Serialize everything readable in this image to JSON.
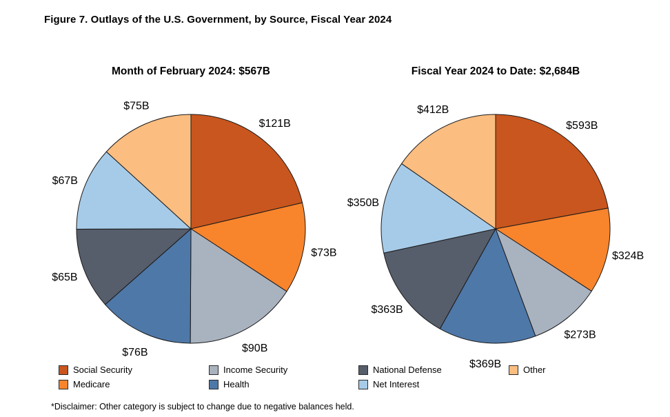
{
  "figure_title": "Figure 7. Outlays of the U.S. Government, by Source, Fiscal Year 2024",
  "disclaimer": "*Disclaimer: Other category is subject to change due to negative balances held.",
  "legend": {
    "items": [
      {
        "label": "Social Security",
        "color": "#C9561E"
      },
      {
        "label": "Medicare",
        "color": "#F8842C"
      },
      {
        "label": "Income Security",
        "color": "#A9B2BF"
      },
      {
        "label": "Health",
        "color": "#4E78A8"
      },
      {
        "label": "National Defense",
        "color": "#565D6B"
      },
      {
        "label": "Net Interest",
        "color": "#A6CBE8"
      },
      {
        "label": "Other",
        "color": "#FBBD80"
      }
    ]
  },
  "chart_data": [
    {
      "type": "pie",
      "title": "Month of February 2024: $567B",
      "total_label": "$567B",
      "categories": [
        "Social Security",
        "Medicare",
        "Income Security",
        "Health",
        "National Defense",
        "Net Interest",
        "Other"
      ],
      "values": [
        121,
        73,
        90,
        76,
        65,
        67,
        75
      ],
      "slice_labels": [
        "$121B",
        "$73B",
        "$90B",
        "$76B",
        "$65B",
        "$67B",
        "$75B"
      ],
      "colors": [
        "#C9561E",
        "#F8842C",
        "#A9B2BF",
        "#4E78A8",
        "#565D6B",
        "#A6CBE8",
        "#FBBD80"
      ],
      "start_angle_deg": 0,
      "direction": "clockwise",
      "label_distance": 1.18
    },
    {
      "type": "pie",
      "title": "Fiscal Year 2024 to Date: $2,684B",
      "total_label": "$2,684B",
      "categories": [
        "Social Security",
        "Medicare",
        "Income Security",
        "Health",
        "National Defense",
        "Net Interest",
        "Other"
      ],
      "values": [
        593,
        324,
        273,
        369,
        363,
        350,
        412
      ],
      "slice_labels": [
        "$593B",
        "$324B",
        "$273B",
        "$369B",
        "$363B",
        "$350B",
        "$412B"
      ],
      "colors": [
        "#C9561E",
        "#F8842C",
        "#A9B2BF",
        "#4E78A8",
        "#565D6B",
        "#A6CBE8",
        "#FBBD80"
      ],
      "start_angle_deg": 0,
      "direction": "clockwise",
      "label_distance": 1.18
    }
  ]
}
